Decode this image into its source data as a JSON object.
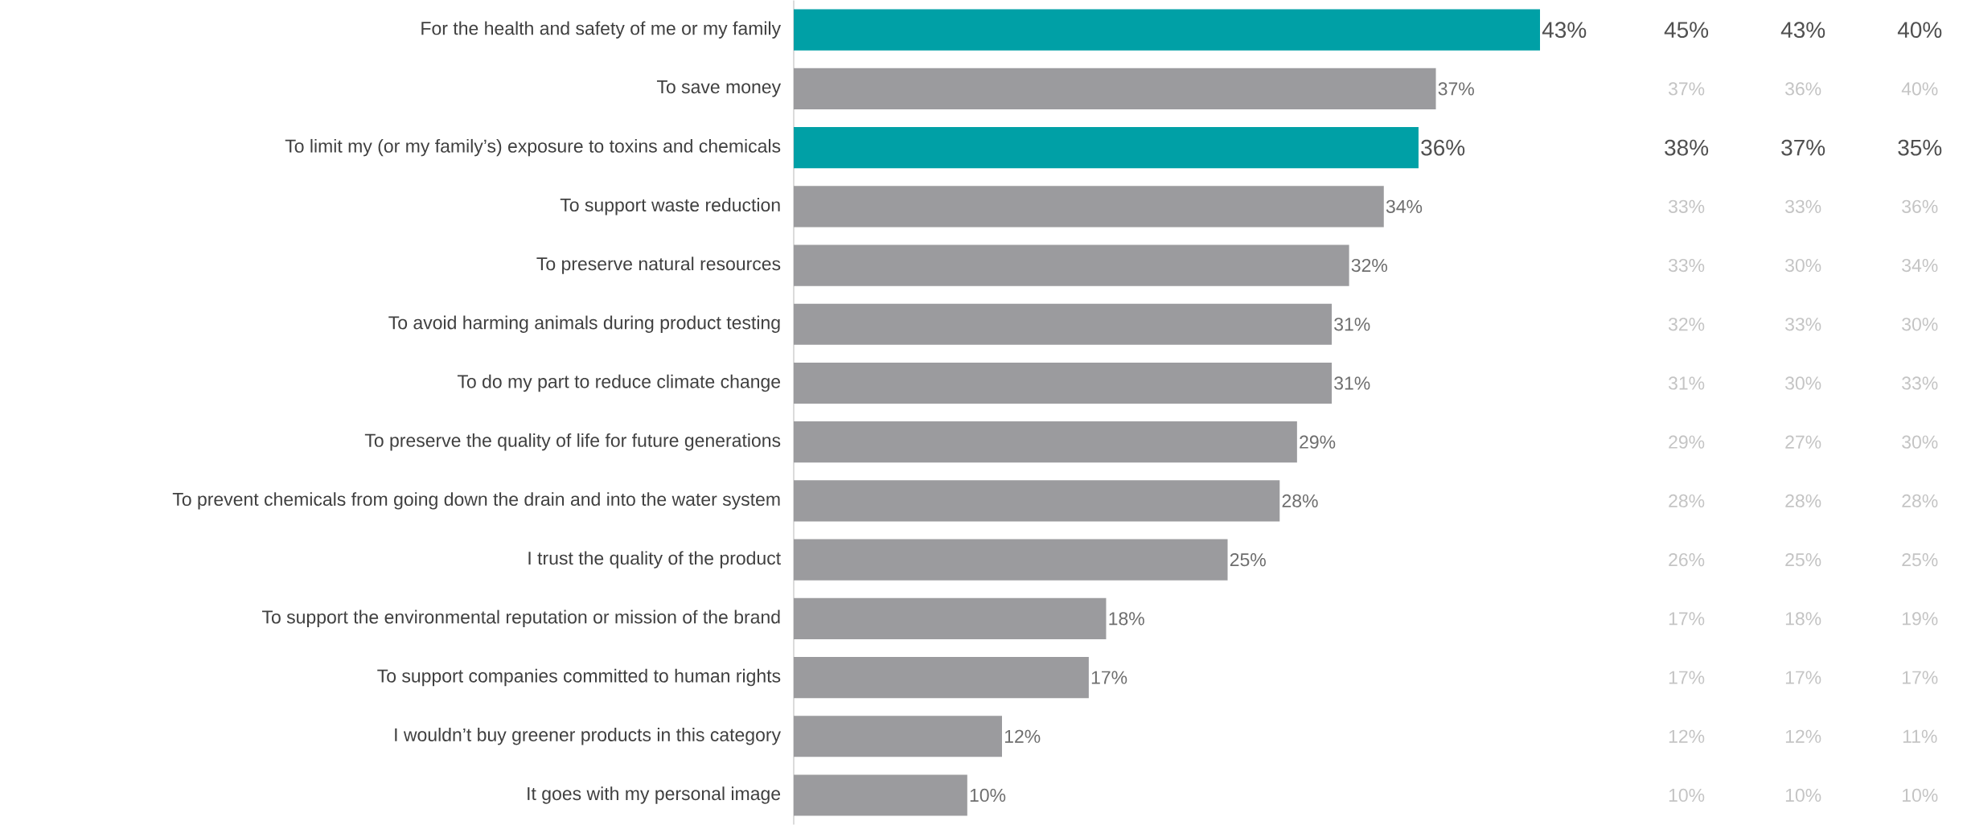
{
  "chart_data": [
    {
      "type": "bar",
      "orientation": "horizontal",
      "categories": [
        "For the health and safety of me or my family",
        "To save money",
        "To limit my (or my family’s) exposure to toxins and chemicals",
        "To support waste reduction",
        "To preserve natural resources",
        "To avoid harming animals during product testing",
        "To do my part to reduce climate change",
        "To preserve the quality of life for future generations",
        "To prevent chemicals from going down the drain and into the water system",
        "I trust the quality of the product",
        "To support the environmental reputation or mission of the brand",
        "To support companies committed to human rights",
        "I wouldn’t buy greener products in this category",
        "It goes with my personal image"
      ],
      "values": [
        43,
        37,
        36,
        34,
        32,
        31,
        31,
        29,
        28,
        25,
        18,
        17,
        12,
        10
      ],
      "value_labels": [
        "43%",
        "37%",
        "36%",
        "34%",
        "32%",
        "31%",
        "31%",
        "29%",
        "28%",
        "25%",
        "18%",
        "17%",
        "12%",
        "10%"
      ],
      "colors": [
        "#00a0a6",
        "#9b9b9e",
        "#00a0a6",
        "#9b9b9e",
        "#9b9b9e",
        "#9b9b9e",
        "#9b9b9e",
        "#9b9b9e",
        "#9b9b9e",
        "#9b9b9e",
        "#9b9b9e",
        "#9b9b9e",
        "#9b9b9e",
        "#9b9b9e"
      ],
      "tick_labels": "y"
    },
    {
      "type": "other",
      "cell_labels": [
        [
          "45%",
          "43%",
          "40%"
        ],
        [
          "37%",
          "36%",
          "40%"
        ],
        [
          "38%",
          "37%",
          "35%"
        ],
        [
          "33%",
          "33%",
          "36%"
        ],
        [
          "33%",
          "30%",
          "34%"
        ],
        [
          "32%",
          "33%",
          "30%"
        ],
        [
          "31%",
          "30%",
          "33%"
        ],
        [
          "29%",
          "27%",
          "30%"
        ],
        [
          "28%",
          "28%",
          "28%"
        ],
        [
          "26%",
          "25%",
          "25%"
        ],
        [
          "17%",
          "18%",
          "19%"
        ],
        [
          "17%",
          "17%",
          "17%"
        ],
        [
          "12%",
          "12%",
          "11%"
        ],
        [
          "10%",
          "10%",
          "10%"
        ]
      ]
    }
  ]
}
